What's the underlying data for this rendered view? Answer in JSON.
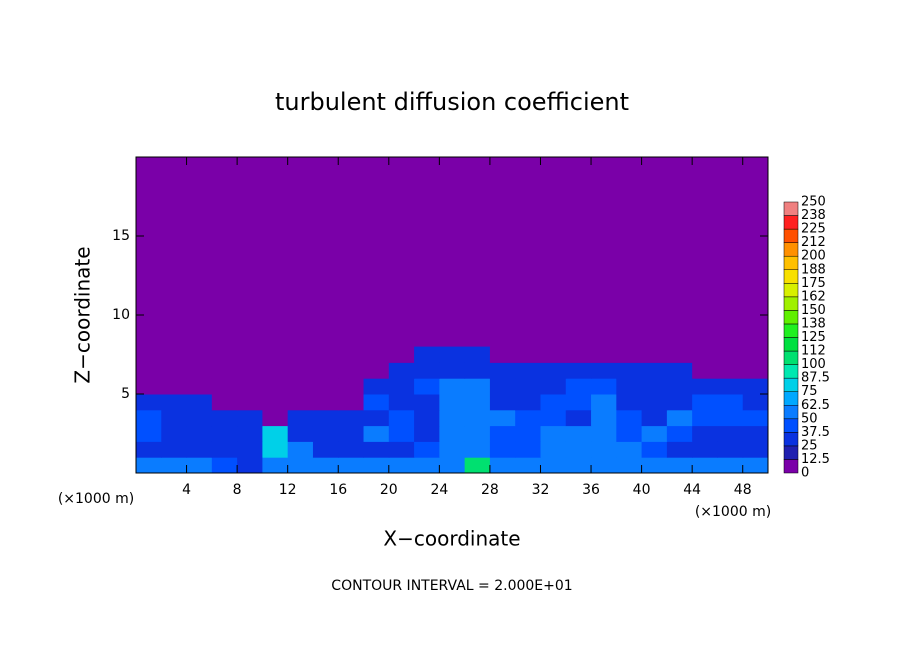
{
  "chart_data": {
    "type": "heatmap",
    "title": "turbulent diffusion coefficient",
    "x_label": "X−coordinate",
    "y_label": "Z−coordinate",
    "x_unit_left": "(×1000 m)",
    "x_unit_right": "(×1000 m)",
    "footer": "CONTOUR INTERVAL = 2.000E+01",
    "xlim": [
      0,
      50
    ],
    "ylim": [
      0,
      20
    ],
    "xticks": [
      4,
      8,
      12,
      16,
      20,
      24,
      28,
      32,
      36,
      40,
      44,
      48
    ],
    "yticks": [
      5,
      10,
      15
    ],
    "x": [
      1,
      3,
      5,
      7,
      9,
      11,
      13,
      15,
      17,
      19,
      21,
      23,
      25,
      27,
      29,
      31,
      33,
      35,
      37,
      39,
      41,
      43,
      45,
      47,
      49
    ],
    "y": [
      0.5,
      1.5,
      2.5,
      3.5,
      4.5,
      5.5,
      6.5,
      7.5
    ],
    "z": [
      [
        50,
        50,
        50,
        40,
        37,
        62,
        50,
        50,
        50,
        50,
        50,
        50,
        62,
        100,
        50,
        50,
        50,
        50,
        50,
        50,
        50,
        50,
        50,
        50,
        50
      ],
      [
        37,
        37,
        25,
        37,
        25,
        87,
        50,
        37,
        37,
        37,
        37,
        40,
        62,
        62,
        40,
        40,
        50,
        50,
        62,
        50,
        40,
        37,
        37,
        37,
        37
      ],
      [
        40,
        37,
        37,
        37,
        25,
        75,
        37,
        25,
        37,
        50,
        40,
        37,
        62,
        62,
        45,
        40,
        62,
        50,
        50,
        40,
        50,
        40,
        37,
        37,
        37
      ],
      [
        40,
        37,
        37,
        25,
        25,
        12,
        25,
        25,
        25,
        37,
        40,
        37,
        62,
        50,
        50,
        40,
        40,
        37,
        50,
        40,
        37,
        50,
        40,
        40,
        45
      ],
      [
        37,
        37,
        25,
        12,
        12,
        0,
        12,
        12,
        12,
        40,
        37,
        37,
        60,
        62,
        37,
        37,
        40,
        40,
        50,
        37,
        37,
        37,
        40,
        40,
        37
      ],
      [
        12,
        12,
        0,
        0,
        0,
        0,
        0,
        0,
        0,
        25,
        37,
        40,
        50,
        50,
        37,
        37,
        37,
        40,
        40,
        37,
        37,
        37,
        37,
        37,
        37
      ],
      [
        0,
        0,
        0,
        0,
        0,
        0,
        0,
        0,
        0,
        0,
        25,
        37,
        37,
        37,
        37,
        25,
        25,
        37,
        37,
        37,
        25,
        25,
        0,
        0,
        0
      ],
      [
        0,
        0,
        0,
        0,
        0,
        0,
        0,
        0,
        0,
        0,
        0,
        25,
        25,
        25,
        12,
        0,
        0,
        0,
        12,
        12,
        0,
        0,
        0,
        0,
        0
      ]
    ],
    "colorbar_ticks": [
      0,
      12.5,
      25,
      37.5,
      50,
      62.5,
      75,
      87.5,
      100,
      {
        "value": 112.5,
        "label": "112"
      },
      125,
      {
        "value": 137.5,
        "label": "138"
      },
      150,
      {
        "value": 162.5,
        "label": "162"
      },
      175,
      {
        "value": 187.5,
        "label": "188"
      },
      200,
      {
        "value": 212.5,
        "label": "212"
      },
      225,
      {
        "value": 237.5,
        "label": "238"
      },
      250
    ],
    "colors": [
      "#7a00a8",
      "#2020b0",
      "#0a32e0",
      "#0050ff",
      "#0a7cff",
      "#00a8ff",
      "#00d0e8",
      "#00e8b0",
      "#00e070",
      "#00e040",
      "#20f020",
      "#60f000",
      "#a0f000",
      "#d8f000",
      "#f8e000",
      "#ffc000",
      "#ff9000",
      "#ff5000",
      "#ff2020",
      "#f08080"
    ]
  }
}
